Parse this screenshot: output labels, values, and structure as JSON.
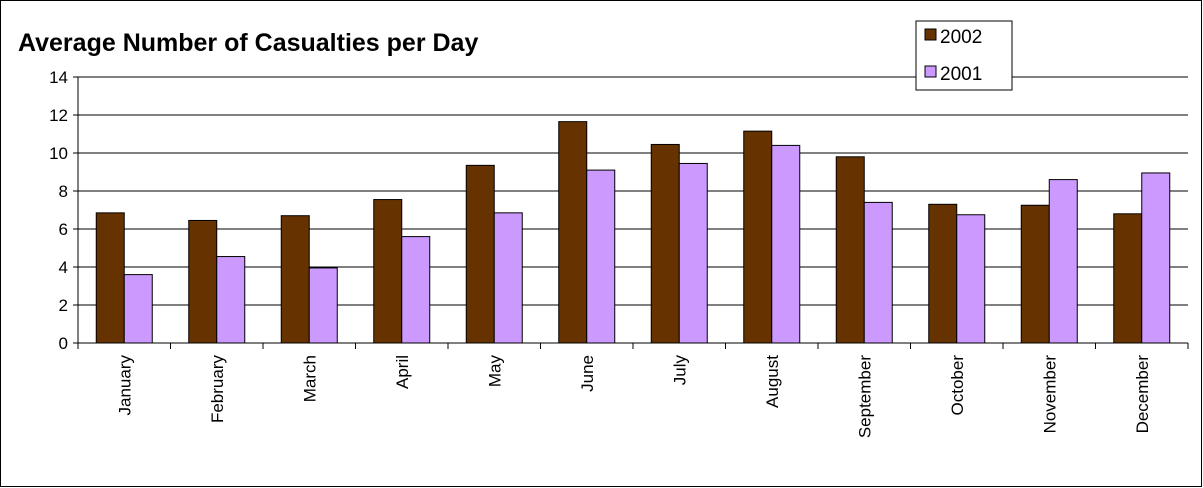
{
  "chart_data": {
    "type": "bar",
    "title": "Average Number of Casualties per Day",
    "categories": [
      "January",
      "February",
      "March",
      "April",
      "May",
      "June",
      "July",
      "August",
      "September",
      "October",
      "November",
      "December"
    ],
    "series": [
      {
        "name": "2002",
        "color": "#663300",
        "values": [
          6.85,
          6.45,
          6.7,
          7.55,
          9.35,
          11.65,
          10.45,
          11.15,
          9.8,
          7.3,
          7.25,
          6.8
        ]
      },
      {
        "name": "2001",
        "color": "#CC99FF",
        "values": [
          3.6,
          4.55,
          3.95,
          5.6,
          6.85,
          9.1,
          9.45,
          10.4,
          7.4,
          6.75,
          8.6,
          8.95
        ]
      }
    ],
    "ylim": [
      0,
      14
    ],
    "yticks": [
      0,
      2,
      4,
      6,
      8,
      10,
      12,
      14
    ],
    "grid": true,
    "legend_position": "top-right"
  }
}
